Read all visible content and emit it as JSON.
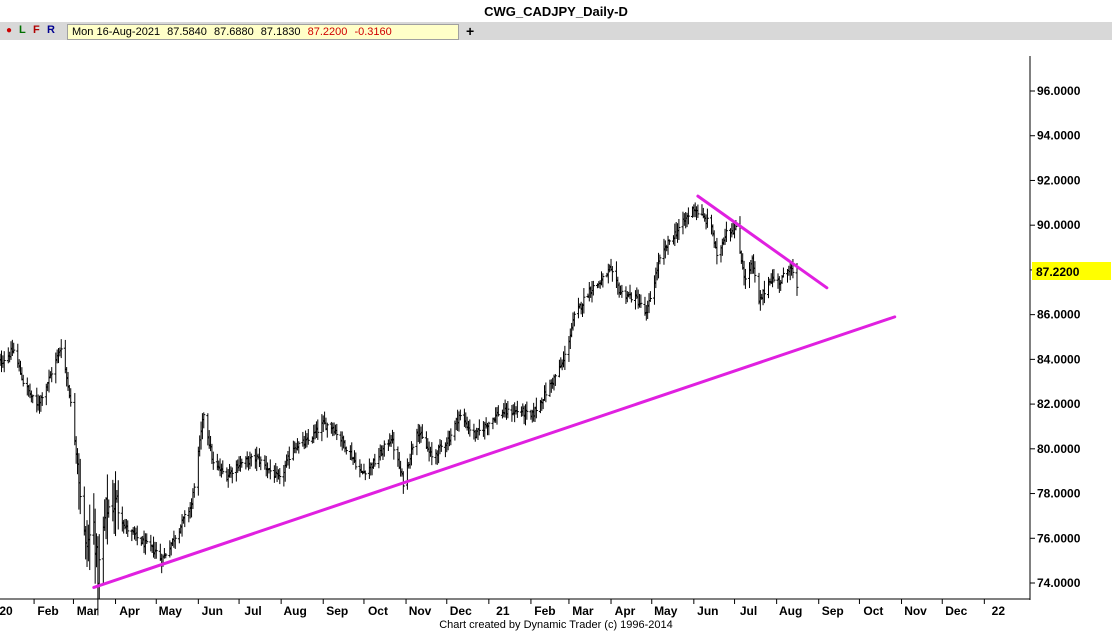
{
  "title": "CWG_CADJPY_Daily-D",
  "toolbar": {
    "buttons": [
      "L",
      "F",
      "R"
    ],
    "date": "Mon 16-Aug-2021",
    "open": "87.5840",
    "high": "87.6880",
    "low": "87.1830",
    "close": "87.2200",
    "change": "-0.3160",
    "add": "+"
  },
  "colors": {
    "bars": "#000000",
    "trendline": "#e020e0",
    "last_price_bg": "#ffff00"
  },
  "footer": "Chart created by Dynamic Trader  (c)  1996-2014",
  "chart_data": {
    "type": "bar",
    "instrument": "CWG_CADJPY",
    "timeframe": "Daily",
    "x_ticks": [
      "20",
      "Feb",
      "Mar",
      "Apr",
      "May",
      "Jun",
      "Jul",
      "Aug",
      "Sep",
      "Oct",
      "Nov",
      "Dec",
      "21",
      "Feb",
      "Mar",
      "Apr",
      "May",
      "Jun",
      "Jul",
      "Aug",
      "Sep",
      "Oct",
      "Nov",
      "Dec",
      "22"
    ],
    "y_ticks": [
      "96.0000",
      "94.0000",
      "92.0000",
      "90.0000",
      "88.0000",
      "86.0000",
      "84.0000",
      "82.0000",
      "80.0000",
      "78.0000",
      "76.0000",
      "74.0000"
    ],
    "y_range": [
      73.3,
      97.8
    ],
    "last_price": "87.2200",
    "anchors": [
      [
        "2020-01-02",
        83.6
      ],
      [
        "2020-01-17",
        84.4
      ],
      [
        "2020-01-24",
        83.0
      ],
      [
        "2020-02-03",
        81.9
      ],
      [
        "2020-02-12",
        83.1
      ],
      [
        "2020-02-21",
        84.6
      ],
      [
        "2020-02-27",
        82.5
      ],
      [
        "2020-03-04",
        79.4
      ],
      [
        "2020-03-10",
        75.5
      ],
      [
        "2020-03-16",
        76.6
      ],
      [
        "2020-03-19",
        74.3
      ],
      [
        "2020-03-25",
        77.3
      ],
      [
        "2020-04-02",
        77.6
      ],
      [
        "2020-04-08",
        76.5
      ],
      [
        "2020-04-21",
        75.8
      ],
      [
        "2020-05-01",
        75.4
      ],
      [
        "2020-05-05",
        75.0
      ],
      [
        "2020-05-15",
        76.1
      ],
      [
        "2020-05-27",
        77.5
      ],
      [
        "2020-06-05",
        81.6
      ],
      [
        "2020-06-12",
        79.3
      ],
      [
        "2020-06-22",
        78.8
      ],
      [
        "2020-06-30",
        79.3
      ],
      [
        "2020-07-14",
        79.6
      ],
      [
        "2020-07-31",
        78.6
      ],
      [
        "2020-08-10",
        80.1
      ],
      [
        "2020-08-20",
        80.3
      ],
      [
        "2020-09-01",
        81.1
      ],
      [
        "2020-09-08",
        81.0
      ],
      [
        "2020-09-21",
        79.8
      ],
      [
        "2020-09-29",
        78.9
      ],
      [
        "2020-10-09",
        79.4
      ],
      [
        "2020-10-21",
        80.5
      ],
      [
        "2020-10-30",
        78.5
      ],
      [
        "2020-11-09",
        80.9
      ],
      [
        "2020-11-20",
        79.6
      ],
      [
        "2020-12-03",
        80.5
      ],
      [
        "2020-12-10",
        81.5
      ],
      [
        "2020-12-22",
        80.6
      ],
      [
        "2021-01-08",
        81.6
      ],
      [
        "2021-01-25",
        81.7
      ],
      [
        "2021-02-01",
        81.4
      ],
      [
        "2021-02-12",
        82.5
      ],
      [
        "2021-02-25",
        83.9
      ],
      [
        "2021-03-05",
        85.9
      ],
      [
        "2021-03-16",
        87.1
      ],
      [
        "2021-03-25",
        87.5
      ],
      [
        "2021-03-31",
        88.0
      ],
      [
        "2021-04-08",
        87.0
      ],
      [
        "2021-04-20",
        86.7
      ],
      [
        "2021-04-27",
        86.0
      ],
      [
        "2021-05-06",
        88.3
      ],
      [
        "2021-05-14",
        89.3
      ],
      [
        "2021-05-24",
        90.1
      ],
      [
        "2021-06-01",
        90.8
      ],
      [
        "2021-06-08",
        90.3
      ],
      [
        "2021-06-14",
        90.0
      ],
      [
        "2021-06-18",
        88.5
      ],
      [
        "2021-06-25",
        89.8
      ],
      [
        "2021-07-02",
        89.8
      ],
      [
        "2021-07-09",
        87.5
      ],
      [
        "2021-07-14",
        88.4
      ],
      [
        "2021-07-19",
        86.5
      ],
      [
        "2021-07-27",
        87.6
      ],
      [
        "2021-08-04",
        87.5
      ],
      [
        "2021-08-11",
        88.2
      ],
      [
        "2021-08-16",
        87.22
      ]
    ],
    "trendlines": [
      {
        "from": [
          "2020-03-16",
          73.8
        ],
        "to": [
          "2021-10-27",
          85.9
        ]
      },
      {
        "from": [
          "2021-06-04",
          91.3
        ],
        "to": [
          "2021-09-07",
          87.2
        ]
      }
    ]
  }
}
